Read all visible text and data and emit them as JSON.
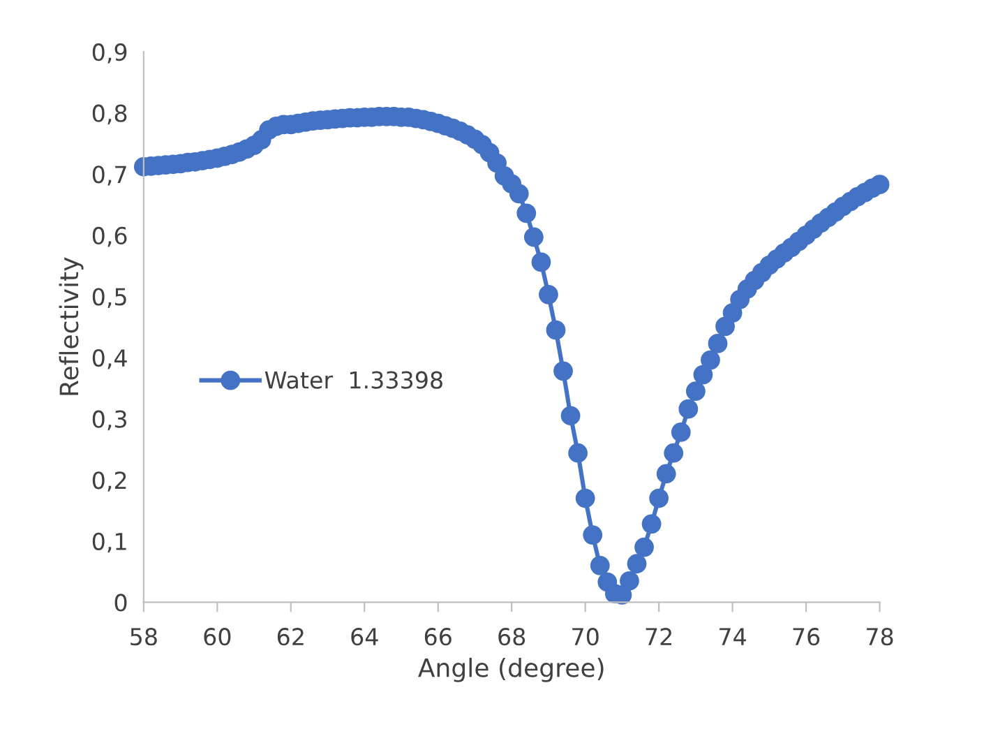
{
  "chart_data": {
    "type": "line",
    "xlabel": "Angle (degree)",
    "ylabel": "Reflectivity",
    "x": [
      58.0,
      58.2,
      58.4,
      58.6,
      58.8,
      59.0,
      59.2,
      59.4,
      59.6,
      59.8,
      60.0,
      60.2,
      60.4,
      60.6,
      60.8,
      61.0,
      61.2,
      61.4,
      61.6,
      61.8,
      62.0,
      62.2,
      62.4,
      62.6,
      62.8,
      63.0,
      63.2,
      63.4,
      63.6,
      63.8,
      64.0,
      64.2,
      64.4,
      64.6,
      64.8,
      65.0,
      65.2,
      65.4,
      65.6,
      65.8,
      66.0,
      66.2,
      66.4,
      66.6,
      66.8,
      67.0,
      67.2,
      67.4,
      67.6,
      67.8,
      68.0,
      68.2,
      68.4,
      68.6,
      68.8,
      69.0,
      69.2,
      69.4,
      69.6,
      69.8,
      70.0,
      70.2,
      70.4,
      70.6,
      70.8,
      71.0,
      71.2,
      71.4,
      71.6,
      71.8,
      72.0,
      72.2,
      72.4,
      72.6,
      72.8,
      73.0,
      73.2,
      73.4,
      73.6,
      73.8,
      74.0,
      74.2,
      74.4,
      74.6,
      74.8,
      75.0,
      75.2,
      75.4,
      75.6,
      75.8,
      76.0,
      76.2,
      76.4,
      76.6,
      76.8,
      77.0,
      77.2,
      77.4,
      77.6,
      77.8,
      78.0
    ],
    "series": [
      {
        "name": "Water  1.33398",
        "color": "#4472c4",
        "values": [
          0.712,
          0.713,
          0.714,
          0.715,
          0.716,
          0.717,
          0.719,
          0.72,
          0.722,
          0.724,
          0.726,
          0.729,
          0.732,
          0.736,
          0.741,
          0.747,
          0.756,
          0.772,
          0.778,
          0.781,
          0.781,
          0.783,
          0.785,
          0.787,
          0.788,
          0.789,
          0.79,
          0.791,
          0.792,
          0.792,
          0.793,
          0.793,
          0.794,
          0.794,
          0.794,
          0.793,
          0.793,
          0.791,
          0.789,
          0.786,
          0.783,
          0.779,
          0.775,
          0.77,
          0.764,
          0.757,
          0.748,
          0.735,
          0.718,
          0.697,
          0.684,
          0.668,
          0.636,
          0.597,
          0.556,
          0.503,
          0.445,
          0.378,
          0.305,
          0.244,
          0.17,
          0.11,
          0.06,
          0.033,
          0.014,
          0.012,
          0.035,
          0.063,
          0.09,
          0.128,
          0.17,
          0.21,
          0.244,
          0.278,
          0.316,
          0.345,
          0.372,
          0.396,
          0.423,
          0.451,
          0.473,
          0.495,
          0.512,
          0.526,
          0.539,
          0.551,
          0.561,
          0.571,
          0.58,
          0.59,
          0.6,
          0.61,
          0.62,
          0.629,
          0.638,
          0.647,
          0.655,
          0.663,
          0.67,
          0.677,
          0.683
        ]
      }
    ],
    "xlim": [
      58,
      78
    ],
    "xticks": [
      58,
      60,
      62,
      64,
      66,
      68,
      70,
      72,
      74,
      76,
      78
    ],
    "ylim": [
      0,
      0.9
    ],
    "yticks": [
      0,
      {
        "value": 0.1,
        "label": "0,1"
      },
      {
        "value": 0.2,
        "label": "0,2"
      },
      {
        "value": 0.3,
        "label": "0,3"
      },
      {
        "value": 0.4,
        "label": "0,4"
      },
      {
        "value": 0.5,
        "label": "0,5"
      },
      {
        "value": 0.6,
        "label": "0,6"
      },
      {
        "value": 0.7,
        "label": "0,7"
      },
      {
        "value": 0.8,
        "label": "0,8"
      },
      {
        "value": 0.9,
        "label": "0,9"
      }
    ],
    "grid": false,
    "legend": "left",
    "marker": "circle",
    "line_style": "solid"
  }
}
